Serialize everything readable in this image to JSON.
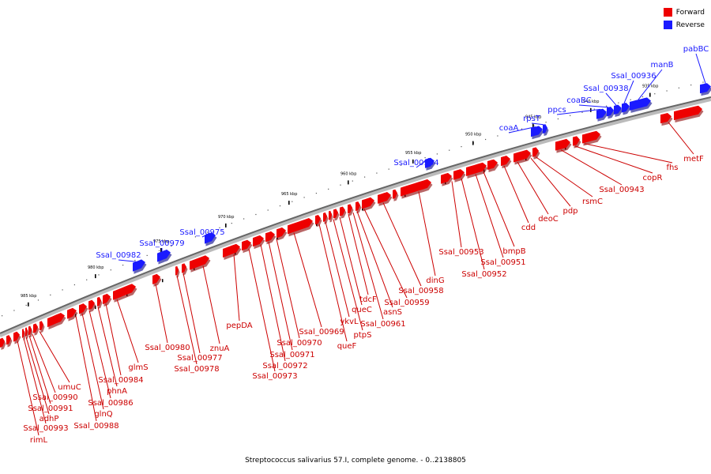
{
  "caption": "Streptococcus salivarius 57.I, complete genome. - 0..2138805",
  "legend": [
    {
      "label": "Forward",
      "color": "#ee0000"
    },
    {
      "label": "Reverse",
      "color": "#1a1aff"
    }
  ],
  "tick_labels": [
    "985 kbp",
    "980 kbp",
    "975 kbp",
    "970 kbp",
    "965 kbp",
    "960 kbp",
    "955 kbp",
    "950 kbp",
    "945 kbp",
    "940 kbp",
    "935 kbp"
  ],
  "reverse_labels": [
    "Ssal_00982",
    "Ssal_00979",
    "Ssal_00975",
    "Ssal_00954",
    "coaA",
    "rpsT",
    "ppcs",
    "coaBC",
    "Ssal_00938",
    "Ssal_00936",
    "manB",
    "pabBC"
  ],
  "forward_labels": [
    "rimL",
    "Ssal_00993",
    "adhP",
    "Ssal_00991",
    "Ssal_00990",
    "umuC",
    "glnQ",
    "Ssal_00988",
    "Ssal_00986",
    "phnA",
    "Ssal_00984",
    "glmS",
    "Ssal_00980",
    "Ssal_00978",
    "Ssal_00977",
    "znuA",
    "pepDA",
    "Ssal_00973",
    "Ssal_00972",
    "Ssal_00971",
    "Ssal_00970",
    "Ssal_00969",
    "queF",
    "ykvL",
    "ptpS",
    "queC",
    "tdcF",
    "Ssal_00961",
    "asnS",
    "Ssal_00959",
    "Ssal_00958",
    "dinG",
    "Ssal_00953",
    "Ssal_00952",
    "Ssal_00951",
    "bmpB",
    "cdd",
    "deoC",
    "pdp",
    "rsmC",
    "Ssal_00943",
    "copR",
    "fhs",
    "metF"
  ]
}
